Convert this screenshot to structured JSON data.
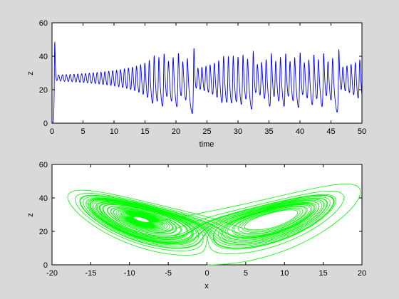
{
  "window": {
    "background": "#d9d9d9"
  },
  "chart_data": [
    {
      "type": "line",
      "title": "",
      "xlabel": "time",
      "ylabel": "z",
      "xlim": [
        0,
        50
      ],
      "ylim": [
        0,
        60
      ],
      "xticks": [
        "0",
        "5",
        "10",
        "15",
        "20",
        "25",
        "30",
        "35",
        "40",
        "45",
        "50"
      ],
      "yticks": [
        "0",
        "20",
        "40",
        "60"
      ],
      "grid": false,
      "series": [
        {
          "color": "#0000ff",
          "description_values": {
            "x_range": [
              0,
              50
            ],
            "y_range_observed": [
              0,
              43
            ],
            "transient": [
              [
                0.1,
                0
              ],
              [
                0.2,
                30
              ],
              [
                0.3,
                43
              ],
              [
                0.35,
                25
              ]
            ],
            "early_oscillation_mean": 24,
            "early_oscillation_amplitude": 4,
            "late_oscillation_min": 6,
            "late_oscillation_max": 38,
            "approx_period": 0.75
          }
        }
      ]
    },
    {
      "type": "line",
      "title": "",
      "xlabel": "x",
      "ylabel": "z",
      "xlim": [
        -20,
        20
      ],
      "ylim": [
        0,
        60
      ],
      "xticks": [
        "-20",
        "-15",
        "-10",
        "-5",
        "0",
        "5",
        "10",
        "15",
        "20"
      ],
      "yticks": [
        "0",
        "20",
        "40",
        "60"
      ],
      "grid": false,
      "series": [
        {
          "color": "#00ff00",
          "description_values": {
            "left_lobe_center": [
              -8.5,
              27
            ],
            "right_lobe_center": [
              8.5,
              27
            ],
            "x_range_observed": [
              -16,
              18
            ],
            "z_range_observed": [
              0,
              43
            ]
          }
        }
      ]
    }
  ]
}
